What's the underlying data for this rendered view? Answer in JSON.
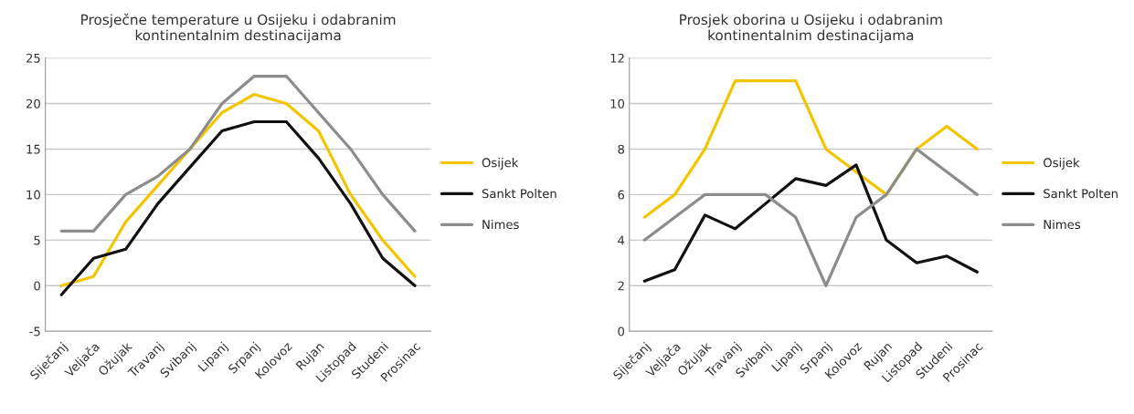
{
  "chart_data": [
    {
      "type": "line",
      "title": "Prosječne temperature u Osijeku i odabranim\nkontinentalnim destinacijama",
      "categories": [
        "Siječanj",
        "Veljača",
        "Ožujak",
        "Travanj",
        "Svibanj",
        "Lipanj",
        "Srpanj",
        "Kolovoz",
        "Rujan",
        "Listopad",
        "Studeni",
        "Prosinac"
      ],
      "series": [
        {
          "name": "Osijek",
          "color": "#f2c500",
          "values": [
            0,
            1,
            7,
            11,
            15,
            19,
            21,
            20,
            17,
            10,
            5,
            1
          ]
        },
        {
          "name": "Sankt Polten",
          "color": "#111111",
          "values": [
            -1,
            3,
            4,
            9,
            13,
            17,
            18,
            18,
            14,
            9,
            3,
            0
          ]
        },
        {
          "name": "Nimes",
          "color": "#8c8c8c",
          "values": [
            6,
            6,
            10,
            12,
            15,
            20,
            23,
            23,
            19,
            15,
            10,
            6
          ]
        }
      ],
      "ylim": [
        -5,
        25
      ],
      "yticks": [
        -5,
        0,
        5,
        10,
        15,
        20,
        25
      ],
      "grid": "y",
      "legend": "right",
      "marker": "none",
      "line_style": "solid"
    },
    {
      "type": "line",
      "title": "Prosjek oborina u Osijeku i odabranim\nkontinentalnim destinacijama",
      "categories": [
        "Siječanj",
        "Veljača",
        "Ožujak",
        "Travanj",
        "Svibanj",
        "Lipanj",
        "Srpanj",
        "Kolovoz",
        "Rujan",
        "Listopad",
        "Studeni",
        "Prosinac"
      ],
      "series": [
        {
          "name": "Osijek",
          "color": "#f2c500",
          "values": [
            5,
            6,
            8,
            11,
            11,
            11,
            8,
            7,
            6,
            8,
            9,
            8
          ]
        },
        {
          "name": "Sankt Polten",
          "color": "#111111",
          "values": [
            2.2,
            2.7,
            5.1,
            4.5,
            5.6,
            6.7,
            6.4,
            7.3,
            4,
            3,
            3.3,
            2.6
          ]
        },
        {
          "name": "Nimes",
          "color": "#8c8c8c",
          "values": [
            4,
            5,
            6,
            6,
            6,
            5,
            2,
            5,
            6,
            8,
            7,
            6
          ]
        }
      ],
      "ylim": [
        0,
        12
      ],
      "yticks": [
        0,
        2,
        4,
        6,
        8,
        10,
        12
      ],
      "grid": "y",
      "legend": "right",
      "marker": "none",
      "line_style": "solid"
    }
  ]
}
